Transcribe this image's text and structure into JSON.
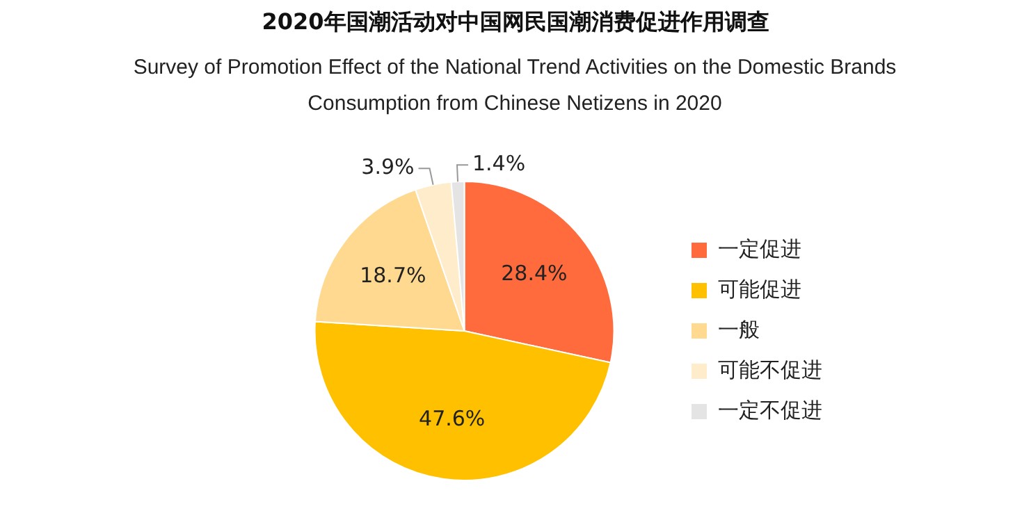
{
  "chart_data": {
    "type": "pie",
    "title": "2020年国潮活动对中国网民国潮消费促进作用调查",
    "subtitle": "Survey of Promotion Effect of the National Trend Activities on the Domestic Brands Consumption from Chinese Netizens in 2020",
    "categories": [
      "一定促进",
      "可能促进",
      "一般",
      "可能不促进",
      "一定不促进"
    ],
    "values": [
      28.4,
      47.6,
      18.7,
      3.9,
      1.4
    ],
    "value_labels": [
      "28.4%",
      "47.6%",
      "18.7%",
      "3.9%",
      "1.4%"
    ],
    "colors": [
      "#ff6b3d",
      "#ffc000",
      "#ffd98f",
      "#ffeccb",
      "#e4e4e4"
    ],
    "legend": "right"
  }
}
